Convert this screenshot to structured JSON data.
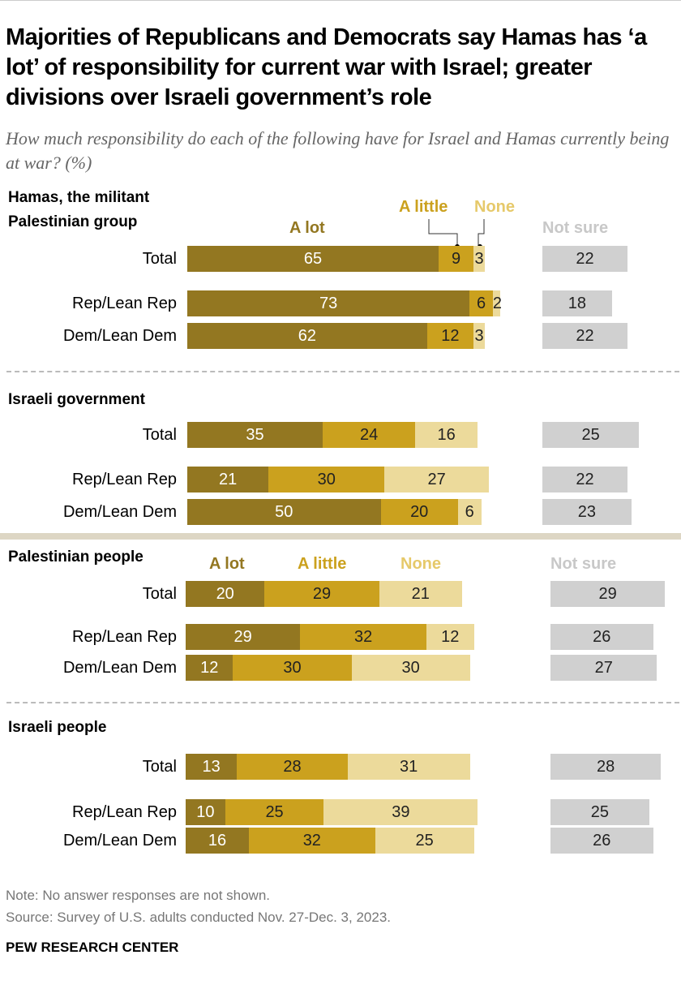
{
  "title": "Majorities of Republicans and Democrats say Hamas has ‘a lot’ of responsibility for current war with Israel; greater divisions over Israeli government’s role",
  "subtitle": "How much responsibility do each of the following have for Israel and Hamas currently being at war? (%)",
  "legend": {
    "a_lot": "A lot",
    "a_little": "A little",
    "none": "None",
    "not_sure": "Not sure"
  },
  "colors": {
    "a_lot": "#937721",
    "a_little": "#cba11e",
    "none": "#ecda9b",
    "not_sure": "#d0d0d0"
  },
  "note": "Note: No answer responses are not shown.",
  "source": "Source: Survey of U.S. adults conducted Nov. 27-Dec. 3, 2023.",
  "logo": "PEW RESEARCH CENTER",
  "chart_data": {
    "type": "bar",
    "stacked": true,
    "unit": "%",
    "series_names": [
      "A lot",
      "A little",
      "None",
      "Not sure"
    ],
    "groups": [
      {
        "title": "Hamas, the militant Palestinian group",
        "rows": [
          {
            "label": "Total",
            "values": [
              65,
              9,
              3,
              22
            ]
          },
          {
            "label": "Rep/Lean Rep",
            "values": [
              73,
              6,
              2,
              18
            ]
          },
          {
            "label": "Dem/Lean Dem",
            "values": [
              62,
              12,
              3,
              22
            ]
          }
        ]
      },
      {
        "title": "Israeli government",
        "rows": [
          {
            "label": "Total",
            "values": [
              35,
              24,
              16,
              25
            ]
          },
          {
            "label": "Rep/Lean Rep",
            "values": [
              21,
              30,
              27,
              22
            ]
          },
          {
            "label": "Dem/Lean Dem",
            "values": [
              50,
              20,
              6,
              23
            ]
          }
        ]
      },
      {
        "title": "Palestinian people",
        "rows": [
          {
            "label": "Total",
            "values": [
              20,
              29,
              21,
              29
            ]
          },
          {
            "label": "Rep/Lean Rep",
            "values": [
              29,
              32,
              12,
              26
            ]
          },
          {
            "label": "Dem/Lean Dem",
            "values": [
              12,
              30,
              30,
              27
            ]
          }
        ]
      },
      {
        "title": "Israeli people",
        "rows": [
          {
            "label": "Total",
            "values": [
              13,
              28,
              31,
              28
            ]
          },
          {
            "label": "Rep/Lean Rep",
            "values": [
              10,
              25,
              39,
              25
            ]
          },
          {
            "label": "Dem/Lean Dem",
            "values": [
              16,
              32,
              25,
              26
            ]
          }
        ]
      }
    ]
  }
}
